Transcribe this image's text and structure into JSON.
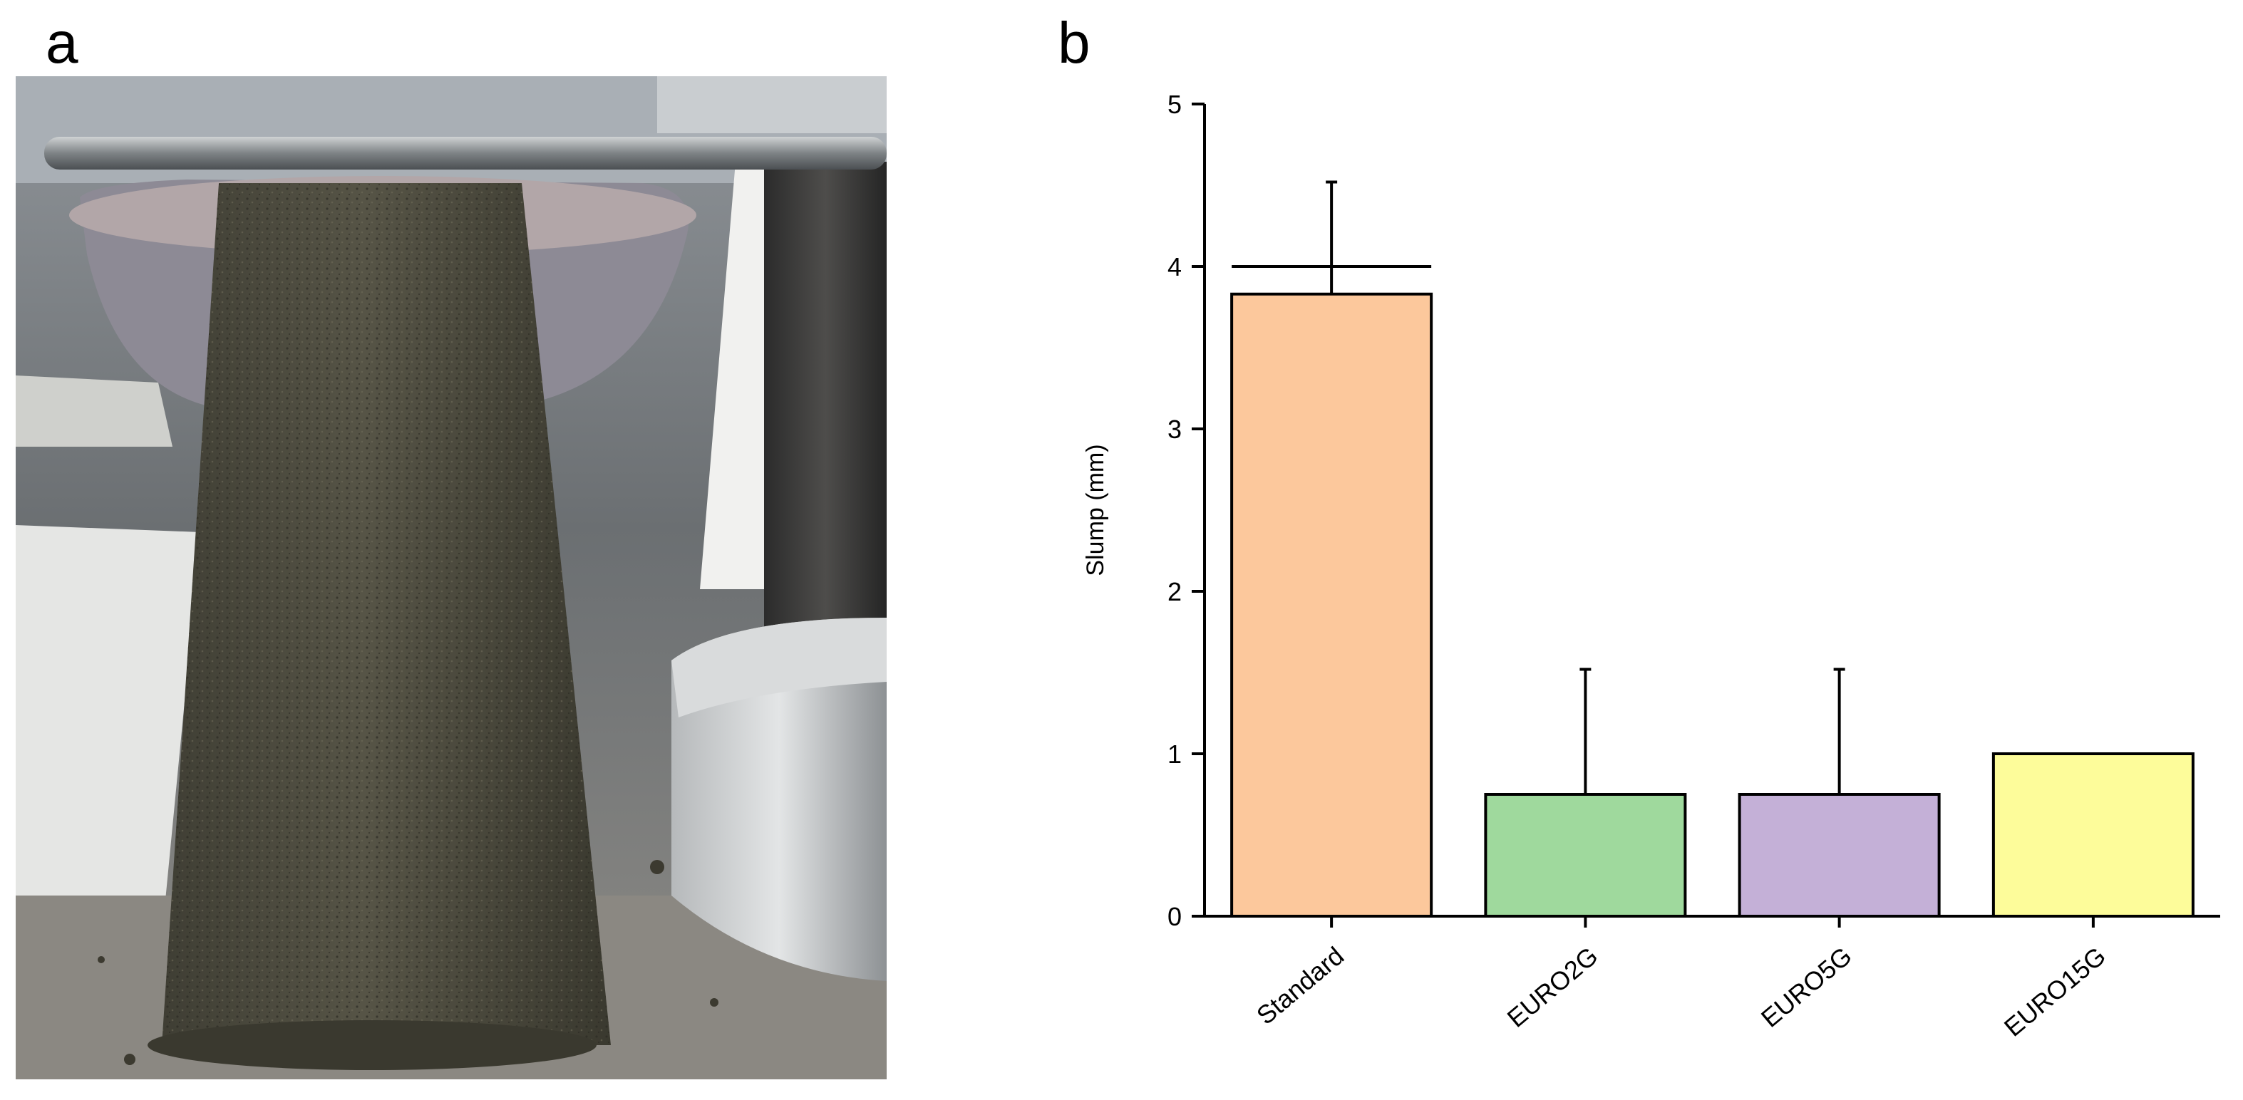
{
  "panels": {
    "a_label": "a",
    "b_label": "b"
  },
  "photo": {
    "subject": "slump-test-sample-photo"
  },
  "chart_data": {
    "type": "bar",
    "title": "",
    "xlabel": "",
    "ylabel": "Slump (mm)",
    "ylim": [
      0,
      5
    ],
    "yticks": [
      0,
      1,
      2,
      3,
      4,
      5
    ],
    "categories": [
      "Standard",
      "EURO2G",
      "EURO5G",
      "EURO15G"
    ],
    "values": [
      3.83,
      0.75,
      0.75,
      1.0
    ],
    "error_upper": [
      0.69,
      0.77,
      0.77,
      0.0
    ],
    "colors": [
      "#fcc89c",
      "#9fd99d",
      "#c4b0d7",
      "#fdfc9a"
    ],
    "annotations": [
      {
        "type": "horizontal-line",
        "y": 4.0,
        "category": "Standard"
      }
    ],
    "grid": false,
    "legend": "none"
  }
}
